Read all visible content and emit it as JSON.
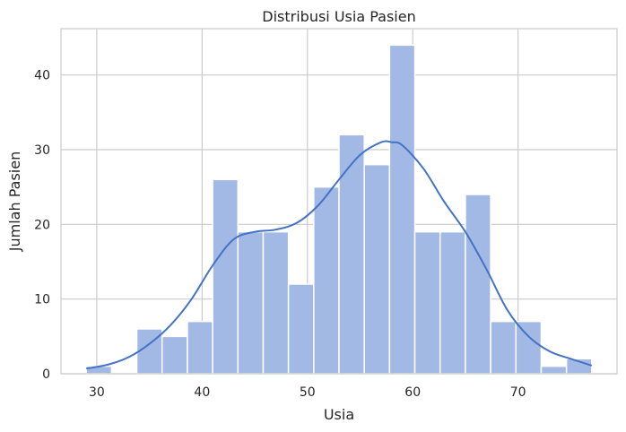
{
  "chart_data": {
    "type": "bar",
    "title": "Distribusi Usia Pasien",
    "xlabel": "Usia",
    "ylabel": "Jumlah Pasien",
    "xlim": [
      26.6,
      79.4
    ],
    "ylim": [
      0,
      46.2
    ],
    "xticks": [
      30,
      40,
      50,
      60,
      70
    ],
    "yticks": [
      0,
      10,
      20,
      30,
      40
    ],
    "grid": true,
    "bin_edges": [
      29,
      31.4,
      33.8,
      36.2,
      38.6,
      41,
      43.4,
      45.8,
      48.2,
      50.6,
      53,
      55.4,
      57.8,
      60.2,
      62.6,
      65,
      67.4,
      69.8,
      72.2,
      74.6,
      77
    ],
    "counts": [
      1,
      0,
      6,
      5,
      7,
      26,
      19,
      19,
      12,
      25,
      32,
      28,
      44,
      19,
      19,
      24,
      7,
      7,
      1,
      2
    ],
    "kde": {
      "x": [
        29,
        31,
        33,
        35,
        37,
        39,
        41,
        43,
        45,
        47,
        49,
        51,
        53,
        55,
        57,
        58,
        59,
        61,
        63,
        65,
        67,
        69,
        71,
        73,
        75,
        77
      ],
      "y": [
        0.7,
        1.2,
        2.2,
        4,
        6.5,
        10,
        14.5,
        18,
        19,
        19.3,
        20.2,
        22.5,
        26,
        29.3,
        31,
        31,
        30.6,
        27.5,
        23,
        19,
        14,
        8.5,
        5,
        3,
        2,
        1.1
      ]
    },
    "colors": {
      "bar": "#a2b9e6",
      "line": "#4472c4"
    }
  }
}
